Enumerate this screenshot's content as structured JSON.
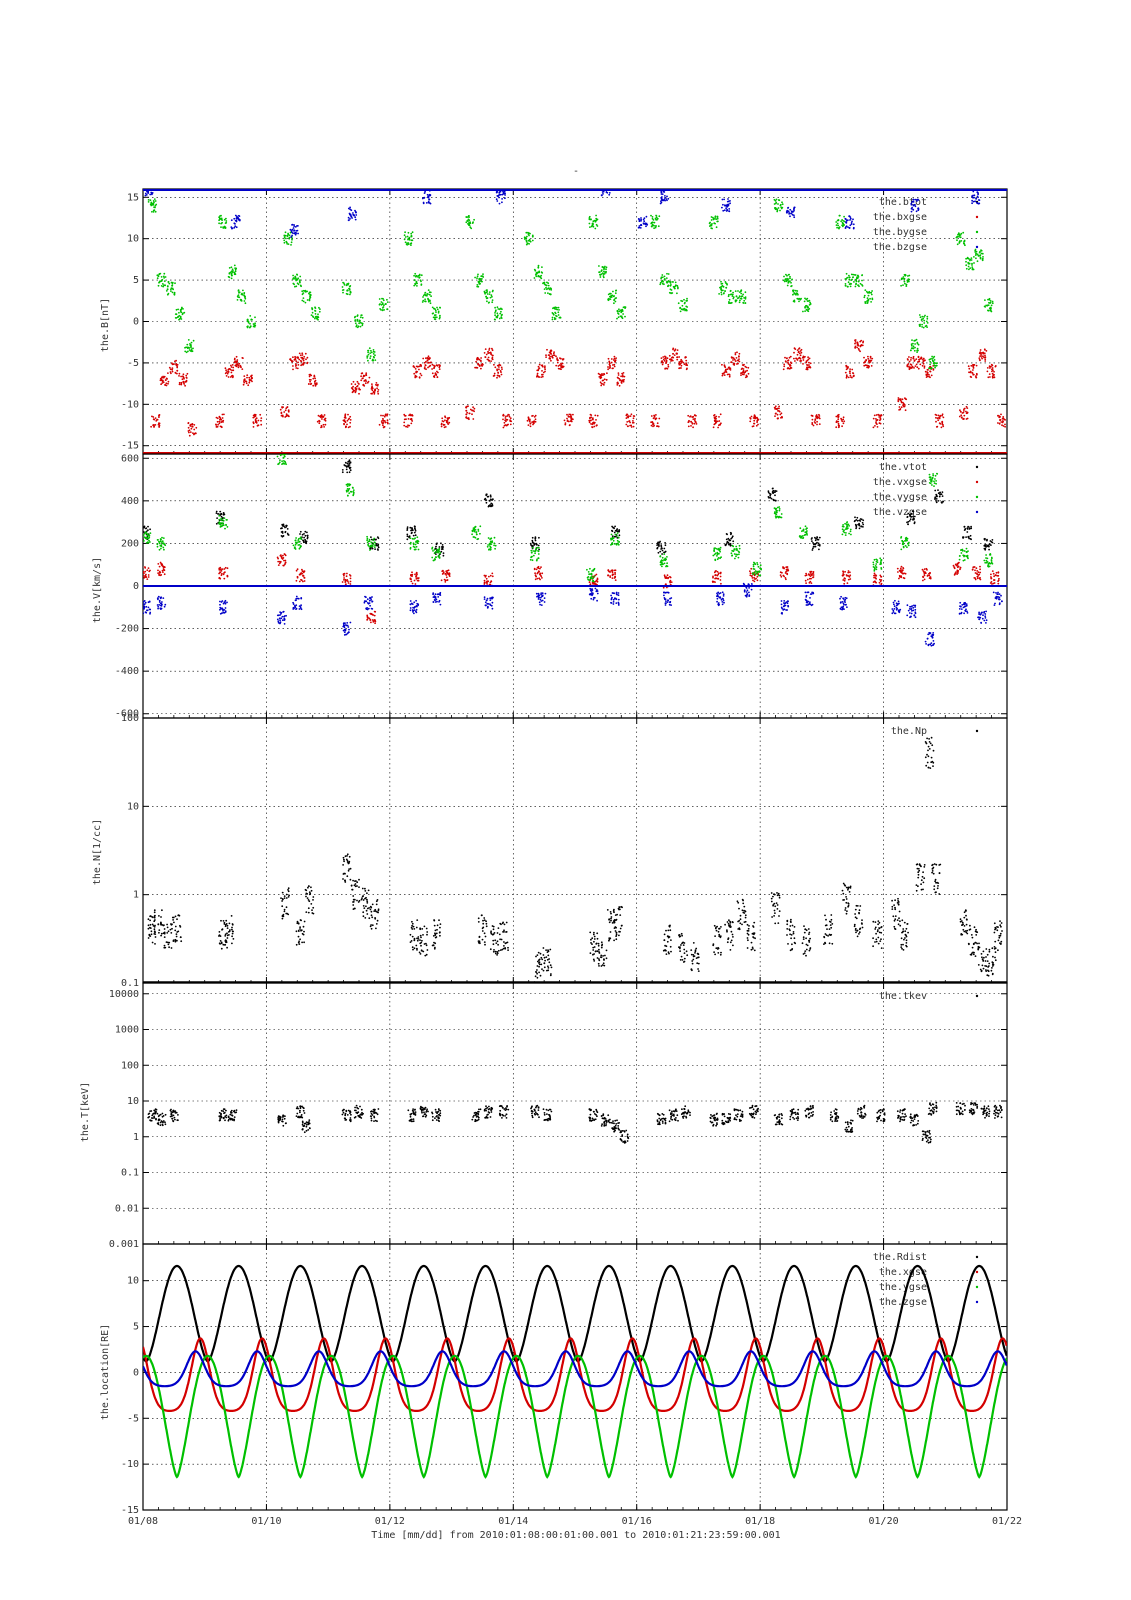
{
  "figure": {
    "title": "-",
    "xlabel": "Time [mm/dd]  from 2010:01:08:00:01:00.001  to  2010:01:21:23:59:00.001"
  },
  "chart_data": [
    {
      "type": "scatter",
      "panel": "B",
      "ylabel": "the.B[nT]",
      "ylim": [
        -16,
        16
      ],
      "yscale": "linear",
      "yticks": [
        -15,
        -10,
        -5,
        0,
        5,
        10,
        15
      ],
      "ytick_labels": [
        "-15",
        "-10",
        "-5",
        "0",
        "5",
        "10",
        "15"
      ],
      "x_days": [
        8,
        22
      ],
      "xticks": [
        8,
        10,
        12,
        14,
        16,
        18,
        20,
        22
      ],
      "xtick_labels": [
        "01/08",
        "01/10",
        "01/12",
        "01/14",
        "01/16",
        "01/18",
        "01/20",
        "01/22"
      ],
      "grid": true,
      "legend_position": "top-right",
      "series": [
        {
          "name": "the.btot",
          "color": "#000000",
          "x": [],
          "y": []
        },
        {
          "name": "the.bxgse",
          "color": "#d40000",
          "x": [
            8.2,
            8.35,
            8.5,
            8.65,
            8.8,
            9.25,
            9.4,
            9.55,
            9.7,
            9.85,
            10.3,
            10.45,
            10.6,
            10.75,
            10.9,
            11.3,
            11.45,
            11.6,
            11.75,
            11.9,
            12.3,
            12.45,
            12.6,
            12.75,
            12.9,
            13.3,
            13.45,
            13.6,
            13.75,
            13.9,
            14.3,
            14.45,
            14.6,
            14.75,
            14.9,
            15.3,
            15.45,
            15.6,
            15.75,
            15.9,
            16.3,
            16.45,
            16.6,
            16.75,
            16.9,
            17.3,
            17.45,
            17.6,
            17.75,
            17.9,
            18.3,
            18.45,
            18.6,
            18.75,
            18.9,
            19.3,
            19.45,
            19.6,
            19.75,
            19.9,
            20.3,
            20.45,
            20.6,
            20.75,
            20.9,
            21.3,
            21.45,
            21.6,
            21.75,
            21.9
          ],
          "y": [
            -12,
            -7,
            -5.5,
            -7,
            -13,
            -12,
            -6,
            -5,
            -7,
            -12,
            -11,
            -5,
            -4.5,
            -7,
            -12,
            -12,
            -8,
            -7,
            -8,
            -12,
            -12,
            -6,
            -5,
            -6,
            -12,
            -11,
            -5,
            -4,
            -6,
            -12,
            -12,
            -6,
            -4,
            -5,
            -12,
            -12,
            -7,
            -5,
            -7,
            -12,
            -12,
            -5,
            -4,
            -5,
            -12,
            -12,
            -6,
            -4.5,
            -6,
            -12,
            -11,
            -5,
            -4,
            -5,
            -12,
            -12,
            -6,
            -3,
            -5,
            -12,
            -10,
            -5,
            -5,
            -6,
            -12,
            -11,
            -6,
            -4,
            -6,
            -12
          ]
        },
        {
          "name": "the.bygse",
          "color": "#00c000",
          "x": [
            8.15,
            8.3,
            8.45,
            8.6,
            8.75,
            9.3,
            9.45,
            9.6,
            9.75,
            10.35,
            10.5,
            10.65,
            10.8,
            11.3,
            11.5,
            11.7,
            11.9,
            12.3,
            12.45,
            12.6,
            12.75,
            13.3,
            13.45,
            13.6,
            13.75,
            14.25,
            14.4,
            14.55,
            14.7,
            15.3,
            15.45,
            15.6,
            15.75,
            16.3,
            16.45,
            16.6,
            16.75,
            17.25,
            17.4,
            17.55,
            17.7,
            18.3,
            18.45,
            18.6,
            18.75,
            19.3,
            19.45,
            19.6,
            19.75,
            20.35,
            20.5,
            20.65,
            20.8,
            21.25,
            21.4,
            21.55,
            21.7
          ],
          "y": [
            14,
            5,
            4,
            1,
            -3,
            12,
            6,
            3,
            0,
            10,
            5,
            3,
            1,
            4,
            0,
            -4,
            2,
            10,
            5,
            3,
            1,
            12,
            5,
            3,
            1,
            10,
            6,
            4,
            1,
            12,
            6,
            3,
            1,
            12,
            5,
            4,
            2,
            12,
            4,
            3,
            3,
            14,
            5,
            3,
            2,
            12,
            5,
            5,
            3,
            5,
            -3,
            0,
            -5,
            10,
            7,
            8,
            2
          ]
        },
        {
          "name": "the.bzgse",
          "color": "#0000c8",
          "x": [
            8.1,
            9.5,
            10.45,
            11.4,
            12.6,
            13.8,
            15.5,
            16.1,
            16.45,
            17.45,
            18.5,
            19.45,
            20.5,
            21.5
          ],
          "y": [
            16,
            12,
            11,
            13,
            15,
            15,
            16,
            12,
            15,
            14,
            13,
            12,
            14,
            15
          ]
        }
      ]
    },
    {
      "type": "scatter",
      "panel": "V",
      "ylabel": "the.V[km/s]",
      "ylim": [
        -620,
        620
      ],
      "yscale": "linear",
      "yticks": [
        -600,
        -400,
        -200,
        0,
        200,
        400,
        600
      ],
      "ytick_labels": [
        "-600",
        "-400",
        "-200",
        "0",
        "200",
        "400",
        "600"
      ],
      "x_days": [
        8,
        22
      ],
      "xticks": [
        8,
        10,
        12,
        14,
        16,
        18,
        20,
        22
      ],
      "grid": true,
      "legend_position": "top-right",
      "series": [
        {
          "name": "the.vtot",
          "color": "#000000",
          "x": [
            8.05,
            9.25,
            10.3,
            10.6,
            11.3,
            11.75,
            12.35,
            12.8,
            13.6,
            14.35,
            15.65,
            16.4,
            17.5,
            18.2,
            18.9,
            19.6,
            20.45,
            20.9,
            21.35,
            21.7
          ],
          "y": [
            250,
            320,
            260,
            230,
            560,
            200,
            250,
            170,
            400,
            200,
            250,
            180,
            220,
            430,
            200,
            300,
            320,
            420,
            250,
            200
          ]
        },
        {
          "name": "the.vxgse",
          "color": "#d40000",
          "x": [
            8.05,
            8.3,
            9.3,
            10.25,
            10.55,
            11.3,
            11.7,
            12.4,
            12.9,
            13.6,
            14.4,
            15.3,
            15.6,
            16.5,
            17.3,
            17.9,
            18.4,
            18.8,
            19.4,
            19.9,
            20.3,
            20.7,
            21.2,
            21.5,
            21.8
          ],
          "y": [
            60,
            80,
            60,
            120,
            50,
            30,
            -150,
            40,
            50,
            30,
            60,
            30,
            50,
            20,
            40,
            50,
            60,
            40,
            40,
            30,
            60,
            50,
            80,
            60,
            40
          ]
        },
        {
          "name": "the.vygse",
          "color": "#00c000",
          "x": [
            8.05,
            8.3,
            9.3,
            10.25,
            10.5,
            11.35,
            11.7,
            12.4,
            12.75,
            13.4,
            13.65,
            14.35,
            15.25,
            15.65,
            16.45,
            17.3,
            17.6,
            17.95,
            18.3,
            18.7,
            19.4,
            19.9,
            20.35,
            20.8,
            21.3,
            21.7
          ],
          "y": [
            230,
            200,
            300,
            600,
            200,
            450,
            200,
            200,
            150,
            250,
            200,
            150,
            50,
            220,
            120,
            150,
            160,
            80,
            350,
            250,
            270,
            100,
            200,
            500,
            150,
            120
          ]
        },
        {
          "name": "the.vzgse",
          "color": "#0000c8",
          "x": [
            8.05,
            8.3,
            9.3,
            10.25,
            10.5,
            11.3,
            11.65,
            12.4,
            12.75,
            13.6,
            14.45,
            15.3,
            15.65,
            16.5,
            17.35,
            17.8,
            18.4,
            18.8,
            19.35,
            20.2,
            20.45,
            20.75,
            21.3,
            21.6,
            21.85
          ],
          "y": [
            -100,
            -80,
            -100,
            -150,
            -80,
            -200,
            -80,
            -100,
            -60,
            -80,
            -60,
            -40,
            -60,
            -60,
            -60,
            -20,
            -100,
            -60,
            -80,
            -100,
            -120,
            -250,
            -100,
            -150,
            -60
          ]
        }
      ]
    },
    {
      "type": "scatter",
      "panel": "N",
      "ylabel": "the.N[1/cc]",
      "ylim": [
        0.1,
        100
      ],
      "yscale": "log",
      "yticks": [
        0.1,
        1,
        10,
        100
      ],
      "ytick_labels": [
        "0.1",
        "1",
        "10",
        "100"
      ],
      "x_days": [
        8,
        22
      ],
      "xticks": [
        8,
        10,
        12,
        14,
        16,
        18,
        20,
        22
      ],
      "grid": true,
      "legend_position": "top-right",
      "series": [
        {
          "name": "the.Np",
          "color": "#000000",
          "x": [
            8.15,
            8.25,
            8.4,
            8.55,
            9.3,
            9.4,
            10.3,
            10.55,
            10.7,
            11.3,
            11.45,
            11.6,
            11.75,
            12.4,
            12.55,
            12.75,
            13.5,
            13.7,
            13.85,
            14.4,
            14.55,
            15.3,
            15.45,
            15.6,
            15.7,
            16.5,
            16.75,
            16.95,
            17.3,
            17.5,
            17.7,
            17.85,
            18.25,
            18.5,
            18.75,
            19.1,
            19.4,
            19.6,
            19.9,
            20.2,
            20.35,
            20.6,
            20.75,
            20.85,
            21.3,
            21.45,
            21.6,
            21.75,
            21.85
          ],
          "y": [
            0.4,
            0.45,
            0.35,
            0.4,
            0.35,
            0.4,
            0.8,
            0.4,
            0.9,
            2,
            1,
            0.8,
            0.6,
            0.35,
            0.3,
            0.35,
            0.4,
            0.3,
            0.35,
            0.15,
            0.18,
            0.25,
            0.2,
            0.45,
            0.5,
            0.3,
            0.25,
            0.2,
            0.3,
            0.35,
            0.6,
            0.35,
            0.7,
            0.35,
            0.3,
            0.4,
            0.9,
            0.5,
            0.35,
            0.6,
            0.35,
            1.5,
            40,
            1.5,
            0.5,
            0.3,
            0.2,
            0.18,
            0.35
          ]
        }
      ]
    },
    {
      "type": "scatter",
      "panel": "T",
      "ylabel": "the.T[keV]",
      "ylim": [
        0.001,
        20000
      ],
      "yscale": "log",
      "yticks": [
        0.001,
        0.01,
        0.1,
        1,
        10,
        100,
        1000,
        10000
      ],
      "ytick_labels": [
        "0.001",
        "0.01",
        "0.1",
        "1",
        "10",
        "100",
        "1000",
        "10000"
      ],
      "x_days": [
        8,
        22
      ],
      "xticks": [
        8,
        10,
        12,
        14,
        16,
        18,
        20,
        22
      ],
      "grid": true,
      "legend_position": "top-right",
      "series": [
        {
          "name": "the.tkev",
          "color": "#000000",
          "x": [
            8.15,
            8.3,
            8.5,
            9.3,
            9.45,
            10.25,
            10.55,
            10.65,
            11.3,
            11.5,
            11.75,
            12.35,
            12.55,
            12.75,
            13.4,
            13.6,
            13.85,
            14.35,
            14.55,
            15.3,
            15.5,
            15.65,
            15.8,
            16.4,
            16.6,
            16.8,
            17.25,
            17.45,
            17.65,
            17.9,
            18.3,
            18.55,
            18.8,
            19.2,
            19.45,
            19.65,
            19.95,
            20.3,
            20.5,
            20.7,
            20.8,
            21.25,
            21.45,
            21.65,
            21.85
          ],
          "y": [
            4,
            3,
            4,
            4,
            4,
            3,
            5,
            2,
            4,
            5,
            4,
            4,
            5,
            4,
            4,
            5,
            5,
            5,
            4,
            4,
            3,
            2,
            1,
            3,
            4,
            5,
            3,
            3,
            4,
            5,
            3,
            4,
            5,
            4,
            2,
            5,
            4,
            4,
            3,
            1,
            6,
            6,
            6,
            5,
            5
          ]
        }
      ]
    },
    {
      "type": "line",
      "panel": "location",
      "ylabel": "the.location[RE]",
      "ylim": [
        -15,
        14
      ],
      "yscale": "linear",
      "yticks": [
        -15,
        -10,
        -5,
        0,
        5,
        10
      ],
      "ytick_labels": [
        "-15",
        "-10",
        "-5",
        "0",
        "5",
        "10"
      ],
      "x_days": [
        8,
        22
      ],
      "xticks": [
        8,
        10,
        12,
        14,
        16,
        18,
        20,
        22
      ],
      "xtick_labels": [
        "01/08",
        "01/10",
        "01/12",
        "01/14",
        "01/16",
        "01/18",
        "01/20",
        "01/22"
      ],
      "grid": true,
      "legend_position": "top-right",
      "orbit_period_days": 1.0,
      "series": [
        {
          "name": "the.Rdist",
          "color": "#000000",
          "peak": 11.6,
          "first_peak_day": 8.55,
          "min": 1.2
        },
        {
          "name": "the.xgse",
          "color": "#d40000",
          "max": 3.7,
          "min": -4.2,
          "first_max_day": 8.93
        },
        {
          "name": "the.ygse",
          "color": "#00c000",
          "max": 1.8,
          "min": -11.4,
          "first_min_day": 8.55
        },
        {
          "name": "the.zgse",
          "color": "#0000c8",
          "max": 2.3,
          "min": -1.5,
          "first_max_day": 8.85
        }
      ]
    }
  ]
}
